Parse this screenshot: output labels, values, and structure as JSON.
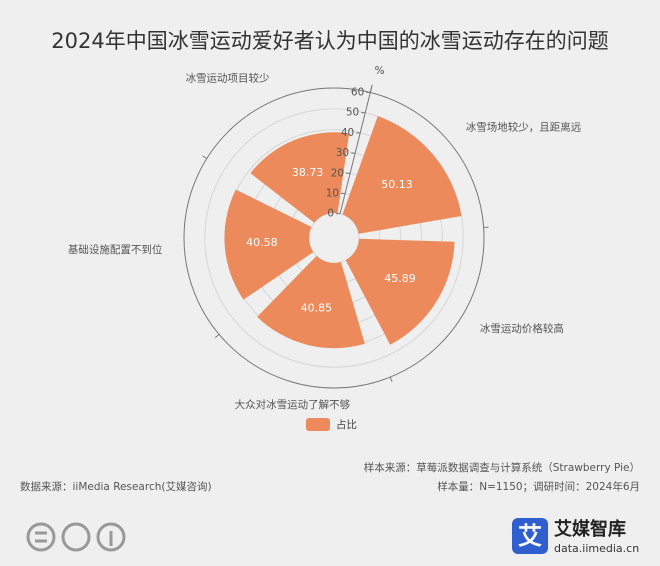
{
  "chart_data": {
    "type": "polar_bar",
    "title": "2024年中国冰雪运动爱好者认为中国的冰雪运动存在的问题",
    "categories": [
      "冰雪场地较少，且距离远",
      "冰雪运动价格较高",
      "大众对冰雪运动了解不够",
      "基础设施配置不到位",
      "冰雪运动项目较少"
    ],
    "series": [
      {
        "name": "占比",
        "color": "#ec8a5c",
        "values": [
          50.13,
          45.89,
          40.85,
          40.58,
          38.73
        ]
      }
    ],
    "rlim": [
      0,
      60
    ],
    "rticks": [
      0,
      10,
      20,
      30,
      40,
      50,
      60
    ],
    "r_unit": "%",
    "grid": true,
    "legend": "bottom"
  },
  "footer": {
    "source": "数据来源：iiMedia Research(艾媒咨询)",
    "sample_source": "样本来源：草莓派数据调查与计算系统（Strawberry Pie）",
    "sample_info": "样本量：N=1150；调研时间：2024年6月"
  },
  "logo": {
    "icon": "艾",
    "name": "艾媒智库",
    "url": "data.iimedia.cn"
  }
}
